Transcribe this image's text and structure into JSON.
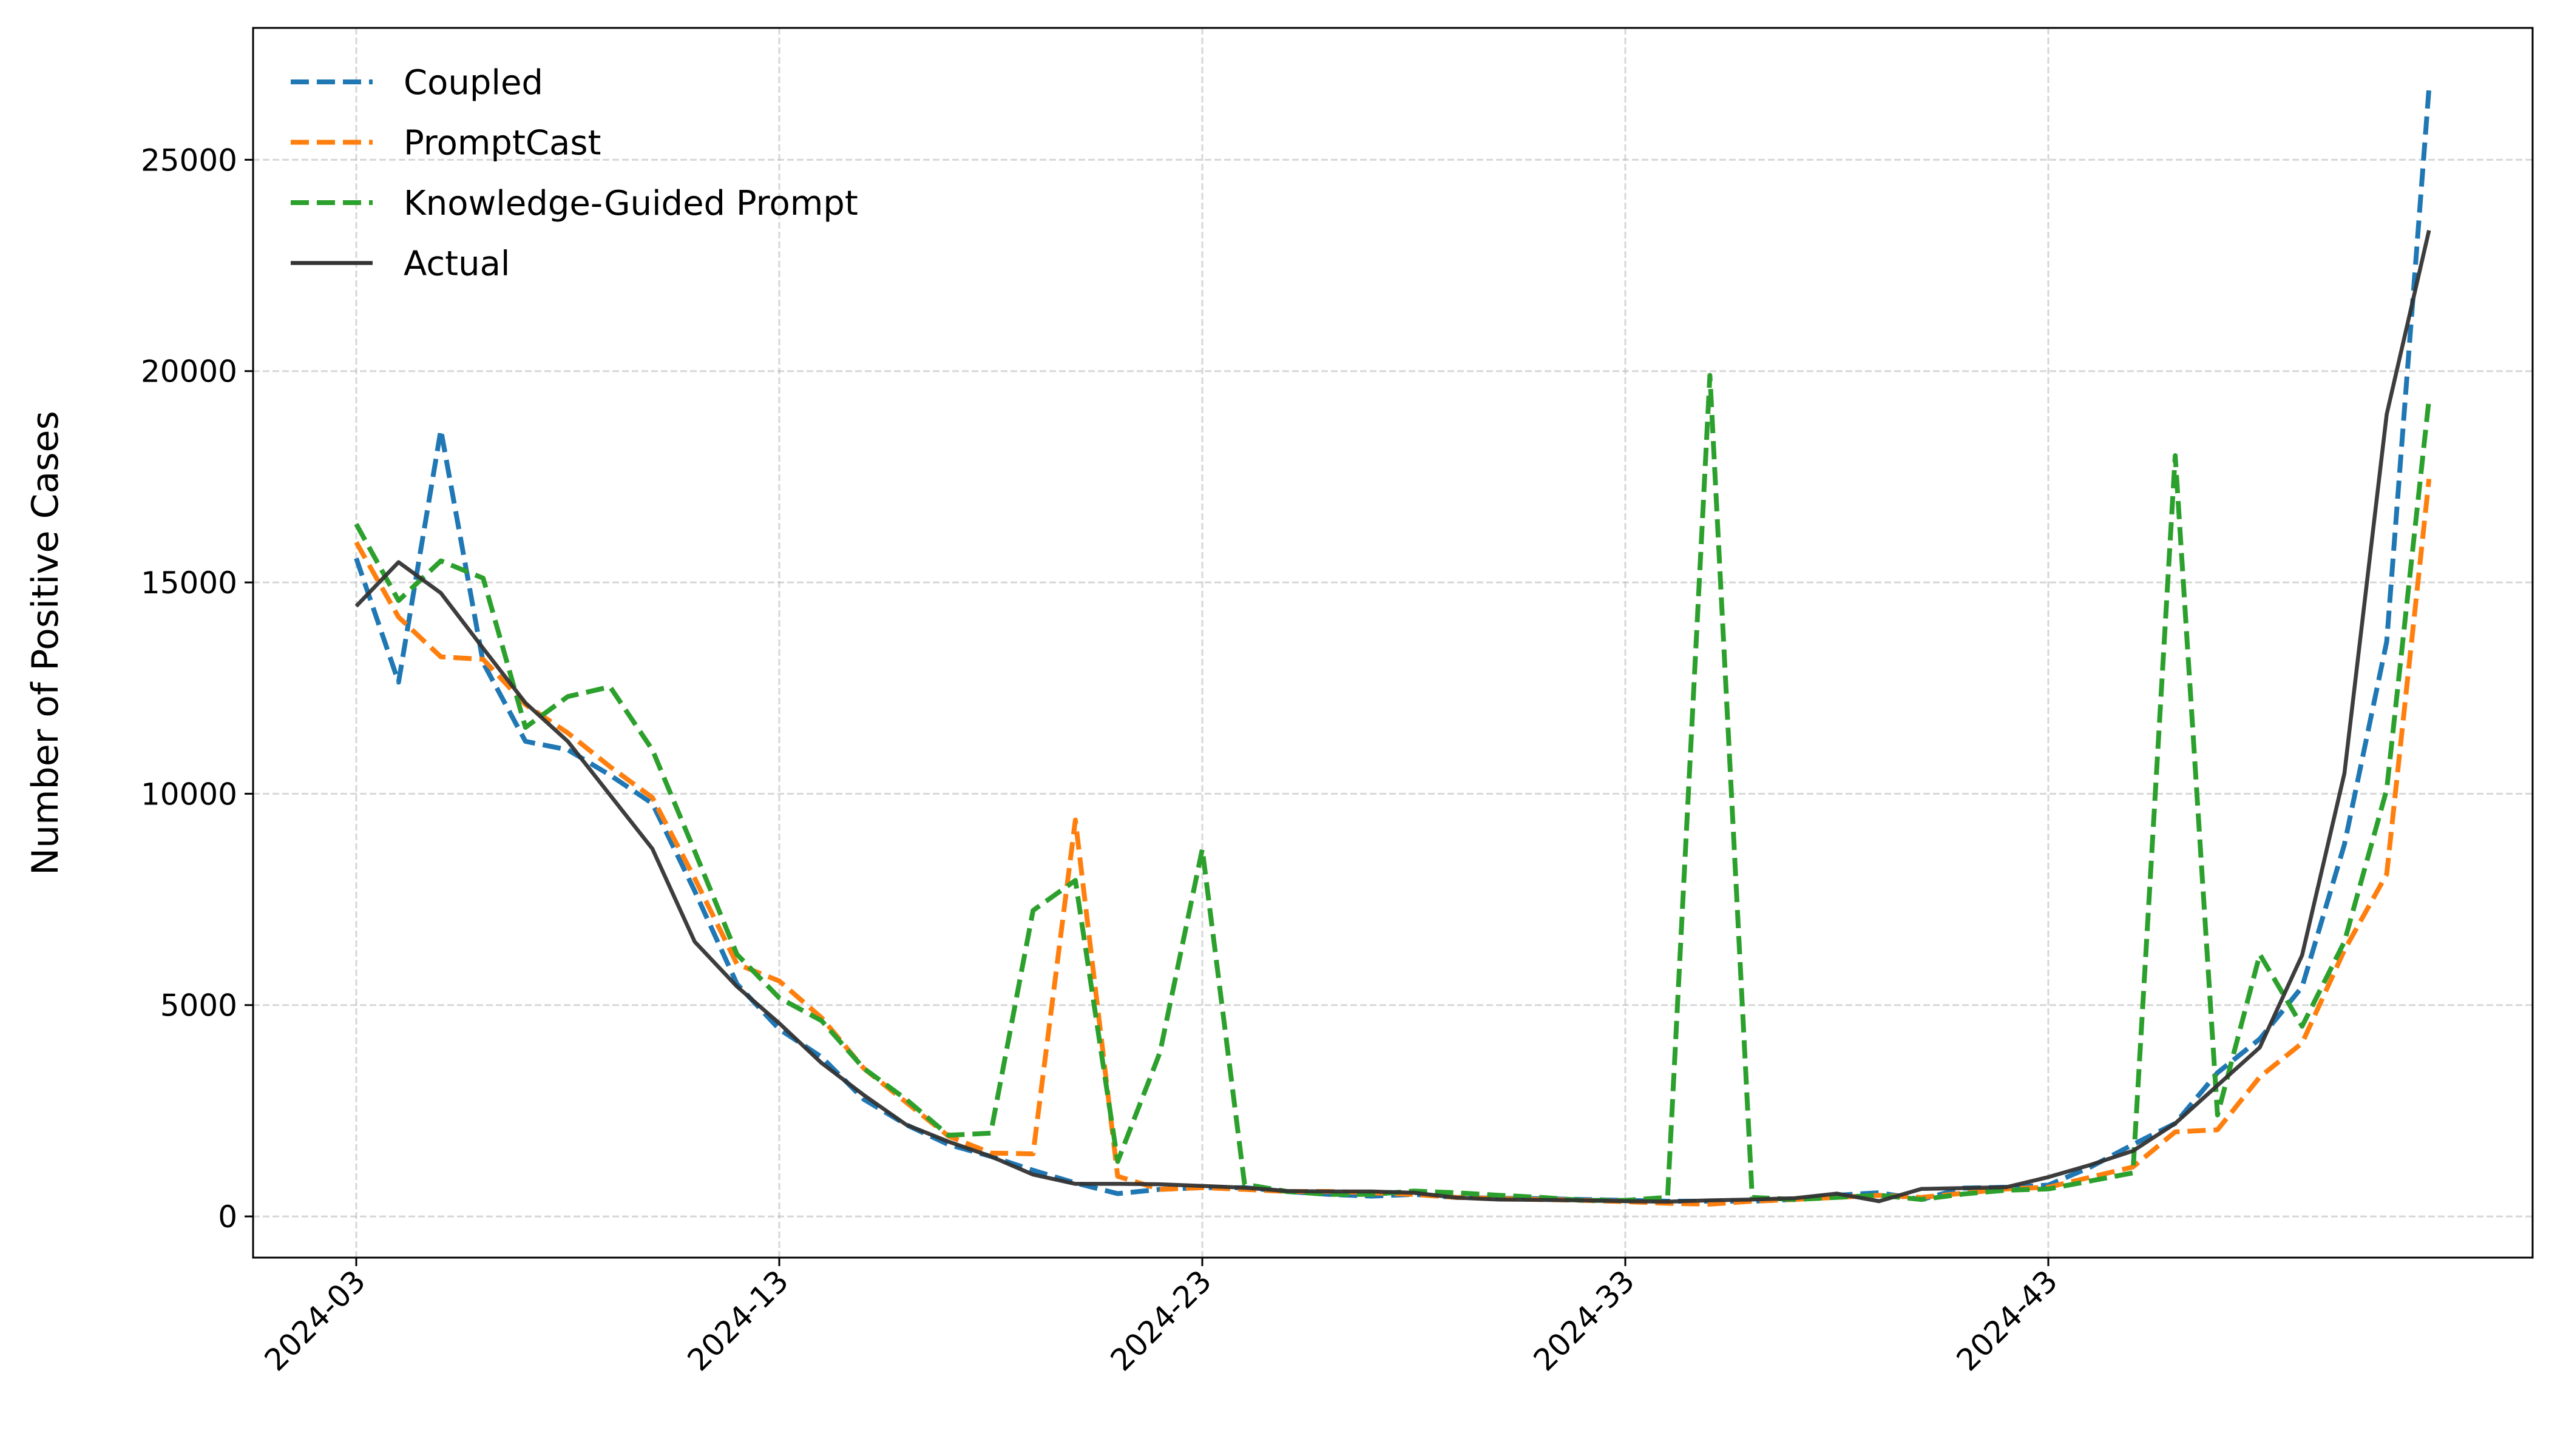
{
  "chart_data": {
    "type": "line",
    "title": "",
    "xlabel": "",
    "ylabel": "Number of Positive Cases",
    "x": [
      "2024-03",
      "2024-04",
      "2024-05",
      "2024-06",
      "2024-07",
      "2024-08",
      "2024-09",
      "2024-10",
      "2024-11",
      "2024-12",
      "2024-13",
      "2024-14",
      "2024-15",
      "2024-16",
      "2024-17",
      "2024-18",
      "2024-19",
      "2024-20",
      "2024-21",
      "2024-22",
      "2024-23",
      "2024-24",
      "2024-25",
      "2024-26",
      "2024-27",
      "2024-28",
      "2024-29",
      "2024-30",
      "2024-31",
      "2024-32",
      "2024-33",
      "2024-34",
      "2024-35",
      "2024-36",
      "2024-37",
      "2024-38",
      "2024-39",
      "2024-40",
      "2024-41",
      "2024-42",
      "2024-43",
      "2024-44",
      "2024-45",
      "2024-46",
      "2024-47",
      "2024-48",
      "2024-49",
      "2024-50",
      "2024-51",
      "2024-52"
    ],
    "xticks": [
      "2024-03",
      "2024-13",
      "2024-23",
      "2024-33",
      "2024-43"
    ],
    "yticks": [
      "0",
      "5000",
      "10000",
      "15000",
      "20000",
      "25000"
    ],
    "ylim": [
      -975,
      28120
    ],
    "grid": true,
    "legend_position": "top-left",
    "series": [
      {
        "name": "Coupled",
        "color": "#1f77b4",
        "style": "dashed",
        "values": [
          15570,
          12640,
          18610,
          13100,
          11240,
          11040,
          10440,
          9770,
          7700,
          5500,
          4430,
          3770,
          2770,
          2170,
          1700,
          1420,
          1090,
          790,
          540,
          640,
          680,
          680,
          590,
          520,
          480,
          520,
          450,
          430,
          420,
          400,
          380,
          360,
          360,
          360,
          400,
          500,
          560,
          400,
          670,
          690,
          740,
          1170,
          1700,
          2200,
          3400,
          4200,
          5430,
          8800,
          13600,
          26700
        ]
      },
      {
        "name": "PromptCast",
        "color": "#ff7f0e",
        "style": "dashed",
        "values": [
          15950,
          14180,
          13240,
          13180,
          12110,
          11440,
          10640,
          9910,
          8000,
          5970,
          5570,
          4700,
          3500,
          2700,
          1900,
          1500,
          1480,
          9380,
          950,
          640,
          680,
          640,
          590,
          590,
          560,
          520,
          450,
          420,
          400,
          380,
          350,
          310,
          290,
          360,
          400,
          450,
          500,
          450,
          550,
          650,
          690,
          930,
          1170,
          2000,
          2050,
          3300,
          4100,
          6300,
          8100,
          17450
        ]
      },
      {
        "name": "Knowledge-Guided Prompt",
        "color": "#2ca02c",
        "style": "dashed",
        "values": [
          16380,
          14570,
          15510,
          15100,
          11570,
          12300,
          12530,
          11040,
          8640,
          6200,
          5170,
          4630,
          3500,
          2770,
          1920,
          1970,
          7240,
          7950,
          1300,
          3880,
          8690,
          760,
          590,
          520,
          520,
          600,
          560,
          500,
          450,
          380,
          380,
          450,
          19900,
          450,
          400,
          450,
          500,
          400,
          530,
          620,
          650,
          840,
          1030,
          18000,
          2400,
          6200,
          4500,
          6500,
          10100,
          19340
        ]
      },
      {
        "name": "Actual",
        "color": "#333333",
        "style": "solid",
        "values": [
          14440,
          15480,
          14750,
          13440,
          12150,
          11240,
          9970,
          8700,
          6500,
          5440,
          4570,
          3630,
          2870,
          2170,
          1770,
          1420,
          990,
          770,
          770,
          760,
          720,
          680,
          600,
          590,
          590,
          560,
          445,
          400,
          390,
          380,
          360,
          350,
          380,
          400,
          430,
          540,
          360,
          650,
          670,
          690,
          930,
          1220,
          1550,
          2200,
          3100,
          4000,
          6180,
          10480,
          18980,
          23330
        ]
      }
    ]
  }
}
